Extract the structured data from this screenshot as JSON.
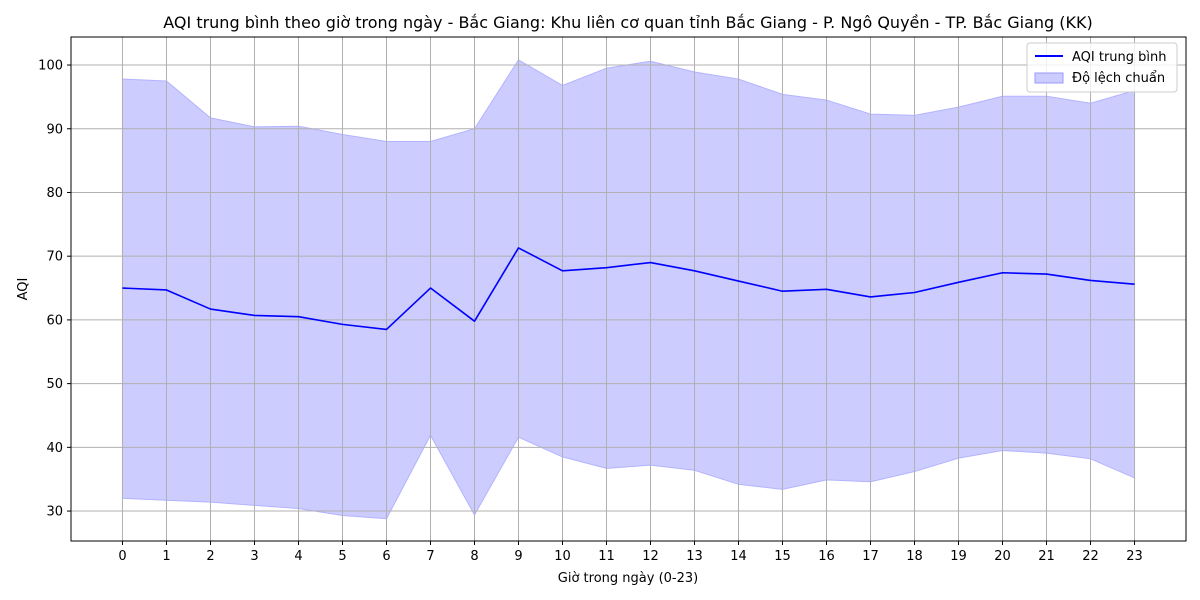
{
  "chart_data": {
    "type": "line",
    "title": "AQI trung bình theo giờ trong ngày - Bắc Giang: Khu liên cơ quan tỉnh Bắc Giang - P. Ngô Quyền - TP. Bắc Giang (KK)",
    "xlabel": "Giờ trong ngày (0-23)",
    "ylabel": "AQI",
    "x": [
      0,
      1,
      2,
      3,
      4,
      5,
      6,
      7,
      8,
      9,
      10,
      11,
      12,
      13,
      14,
      15,
      16,
      17,
      18,
      19,
      20,
      21,
      22,
      23
    ],
    "x_tick_labels": [
      "0",
      "1",
      "2",
      "3",
      "4",
      "5",
      "6",
      "7",
      "8",
      "9",
      "10",
      "11",
      "12",
      "13",
      "14",
      "15",
      "16",
      "17",
      "18",
      "19",
      "20",
      "21",
      "22",
      "23"
    ],
    "y_ticks": [
      30,
      40,
      50,
      60,
      70,
      80,
      90,
      100
    ],
    "y_tick_labels": [
      "30",
      "40",
      "50",
      "60",
      "70",
      "80",
      "90",
      "100"
    ],
    "xlim": [
      -1.17,
      24.17
    ],
    "ylim": [
      25.3,
      104.4
    ],
    "grid": true,
    "legend_position": "top-right",
    "series": [
      {
        "name": "AQI trung bình",
        "kind": "line",
        "color": "#0000ff",
        "values": [
          65.0,
          64.7,
          61.7,
          60.7,
          60.5,
          59.3,
          58.5,
          65.0,
          59.8,
          71.3,
          67.7,
          68.2,
          69.0,
          67.7,
          66.1,
          64.5,
          64.8,
          63.6,
          64.3,
          65.9,
          67.4,
          67.2,
          66.2,
          65.6
        ]
      },
      {
        "name": "Độ lệch chuẩn",
        "kind": "band",
        "color": "#ccccff",
        "upper": [
          97.8,
          97.5,
          91.7,
          90.3,
          90.4,
          89.1,
          88.0,
          88.0,
          90.0,
          100.8,
          96.8,
          99.5,
          100.6,
          98.9,
          97.8,
          95.4,
          94.5,
          92.3,
          92.1,
          93.4,
          95.1,
          95.1,
          94.0,
          96.0
        ],
        "lower": [
          32.0,
          31.7,
          31.4,
          30.9,
          30.4,
          29.3,
          28.8,
          41.9,
          29.4,
          41.6,
          38.5,
          36.7,
          37.2,
          36.4,
          34.2,
          33.4,
          34.9,
          34.6,
          36.2,
          38.3,
          39.5,
          39.1,
          38.2,
          35.2
        ]
      }
    ]
  }
}
